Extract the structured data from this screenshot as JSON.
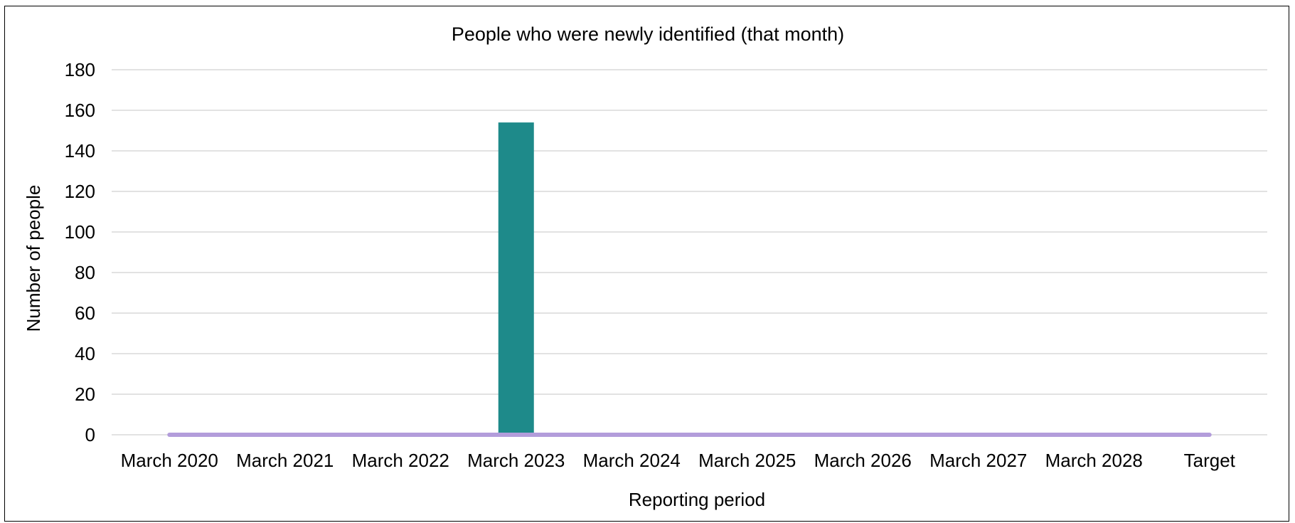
{
  "chart_data": {
    "type": "bar",
    "title": "People who were newly identified (that month)",
    "xlabel": "Reporting period",
    "ylabel": "Number of people",
    "categories": [
      "March 2020",
      "March 2021",
      "March 2022",
      "March 2023",
      "March 2024",
      "March 2025",
      "March 2026",
      "March 2027",
      "March 2028",
      "Target"
    ],
    "series": [
      {
        "values": [
          null,
          null,
          null,
          154,
          null,
          null,
          null,
          null,
          null,
          null
        ],
        "color": "#1E8A8A",
        "kind": "bar"
      },
      {
        "values": [
          0,
          0,
          0,
          0,
          0,
          0,
          0,
          0,
          0,
          0
        ],
        "color": "#B39DDB",
        "kind": "line"
      }
    ],
    "ylim": [
      0,
      180
    ],
    "yticks": [
      0,
      20,
      40,
      60,
      80,
      100,
      120,
      140,
      160,
      180
    ],
    "grid": true,
    "legend": "none"
  }
}
